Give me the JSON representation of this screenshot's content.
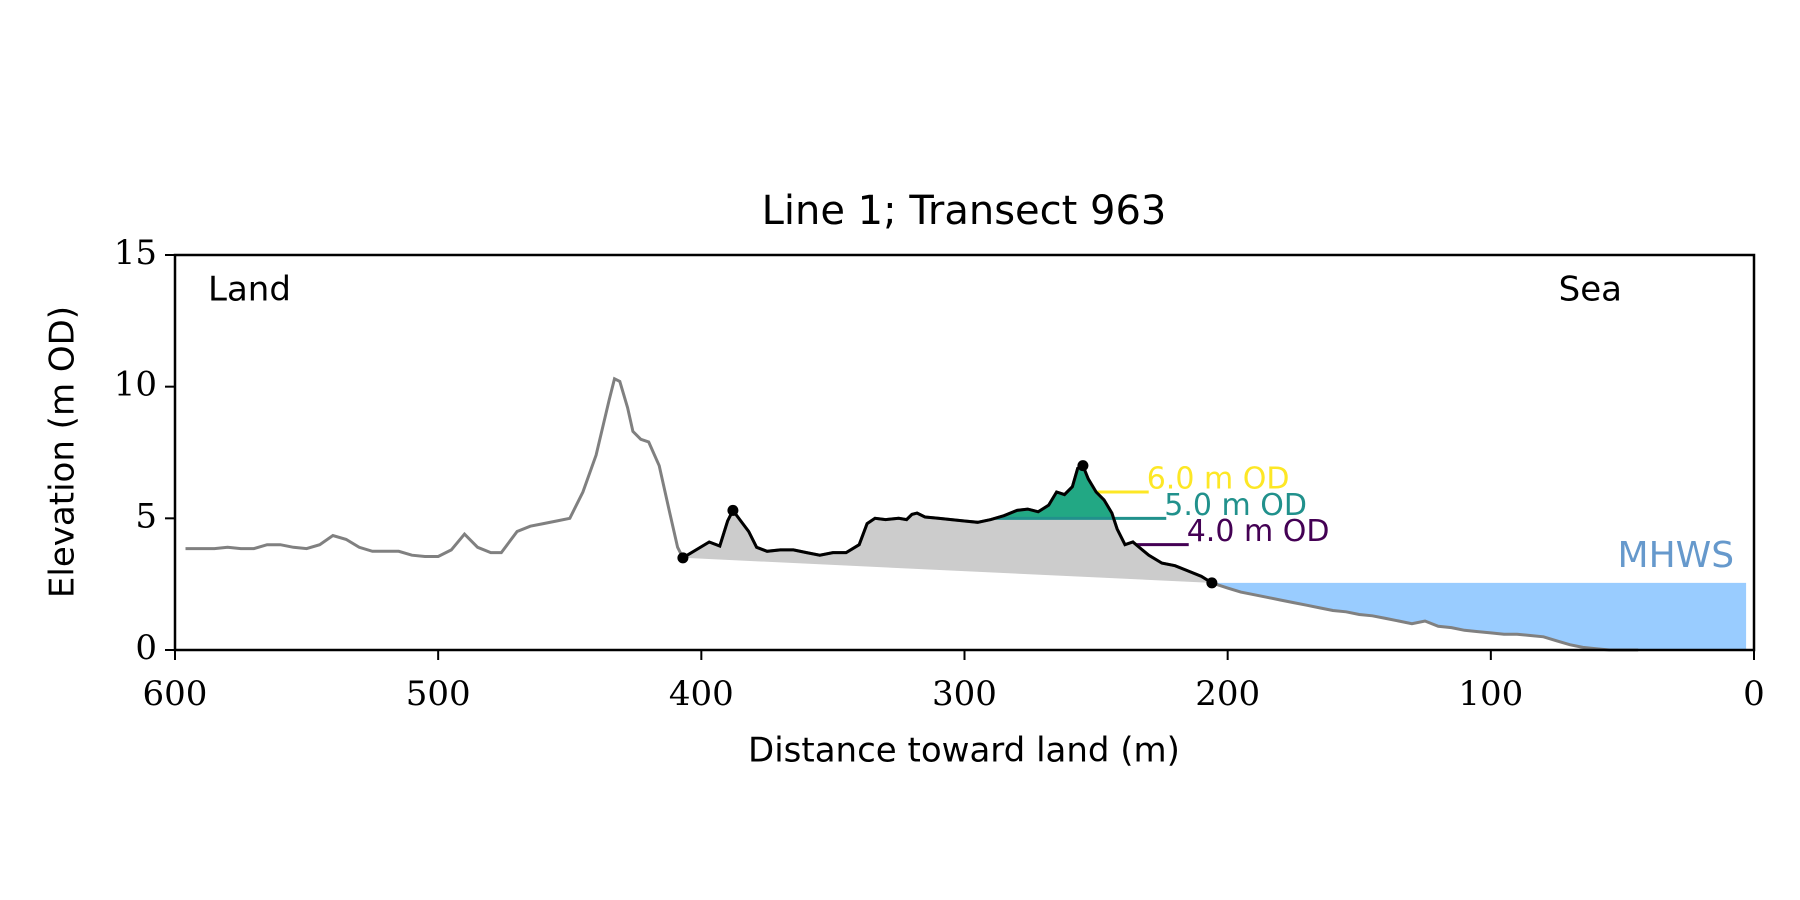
{
  "chart_data": {
    "type": "line",
    "title": "Line 1; Transect 963",
    "xlabel": "Distance toward land (m)",
    "ylabel": "Elevation (m OD)",
    "xlim": [
      600,
      0
    ],
    "ylim": [
      0,
      15
    ],
    "xticks": [
      600,
      500,
      400,
      300,
      200,
      100,
      0
    ],
    "yticks": [
      0,
      5,
      10,
      15
    ],
    "annotations": [
      {
        "text": "Land"
      },
      {
        "text": "Sea"
      }
    ],
    "series": [
      {
        "color": "#808080",
        "x": [
          596,
          590,
          585,
          580,
          575,
          570,
          565,
          560,
          555,
          550,
          545,
          540,
          535,
          530,
          525,
          520,
          515,
          510,
          505,
          500,
          495,
          490,
          485,
          480,
          476,
          470,
          465,
          460,
          455,
          450,
          445,
          440,
          435,
          433,
          431,
          428,
          426,
          423,
          420,
          416,
          412,
          409,
          407,
          402,
          397,
          393,
          390,
          388,
          385,
          382,
          379,
          375,
          370,
          365,
          360,
          355,
          350,
          345,
          340,
          337,
          334,
          330,
          325,
          322,
          320,
          318,
          315,
          310,
          305,
          300,
          295,
          290,
          285,
          280,
          276,
          272,
          268,
          265,
          262,
          259,
          257,
          255,
          253,
          250,
          247,
          244,
          242,
          239,
          236,
          233,
          230,
          225,
          220,
          215,
          210,
          206,
          200,
          195,
          190,
          185,
          180,
          175,
          170,
          165,
          160,
          155,
          150,
          145,
          140,
          135,
          130,
          125,
          120,
          115,
          110,
          105,
          100,
          95,
          90,
          85,
          80,
          75,
          70,
          65,
          60,
          55,
          50,
          44
        ],
        "values": [
          3.85,
          3.85,
          3.85,
          3.9,
          3.85,
          3.85,
          4.0,
          4.0,
          3.9,
          3.85,
          4.0,
          4.35,
          4.2,
          3.9,
          3.75,
          3.75,
          3.75,
          3.6,
          3.55,
          3.55,
          3.8,
          4.4,
          3.9,
          3.7,
          3.7,
          4.5,
          4.7,
          4.8,
          4.9,
          5.0,
          6.0,
          7.4,
          9.5,
          10.3,
          10.2,
          9.2,
          8.3,
          8.0,
          7.9,
          7.0,
          5.2,
          3.9,
          3.5,
          3.8,
          4.1,
          3.95,
          4.9,
          5.3,
          4.9,
          4.5,
          3.9,
          3.75,
          3.8,
          3.8,
          3.7,
          3.6,
          3.7,
          3.7,
          4.0,
          4.8,
          5.0,
          4.95,
          5.0,
          4.95,
          5.15,
          5.2,
          5.05,
          5.0,
          4.95,
          4.9,
          4.85,
          4.95,
          5.1,
          5.3,
          5.35,
          5.25,
          5.5,
          6.0,
          5.9,
          6.2,
          6.9,
          7.0,
          6.5,
          6.0,
          5.7,
          5.2,
          4.6,
          4.0,
          4.1,
          3.85,
          3.6,
          3.3,
          3.2,
          3.0,
          2.8,
          2.55,
          2.35,
          2.2,
          2.1,
          2.0,
          1.9,
          1.8,
          1.7,
          1.6,
          1.5,
          1.45,
          1.35,
          1.3,
          1.2,
          1.1,
          1.0,
          1.1,
          0.9,
          0.85,
          0.75,
          0.7,
          0.65,
          0.6,
          0.6,
          0.55,
          0.5,
          0.35,
          0.2,
          0.1,
          0.05,
          0.0,
          0.0,
          0.0
        ]
      },
      {
        "color": "#000000",
        "fill": "#cccccc",
        "x": [
          407,
          402,
          397,
          393,
          390,
          388,
          385,
          382,
          379,
          375,
          370,
          365,
          360,
          355,
          350,
          345,
          340,
          337,
          334,
          330,
          325,
          322,
          320,
          318,
          315,
          310,
          305,
          300,
          295,
          290,
          285,
          280,
          276,
          272,
          268,
          265,
          262,
          259,
          257,
          255,
          253,
          250,
          247,
          244,
          242,
          239,
          236,
          233,
          230,
          225,
          220,
          215,
          210,
          206
        ],
        "values": [
          3.5,
          3.8,
          4.1,
          3.95,
          4.9,
          5.3,
          4.9,
          4.5,
          3.9,
          3.75,
          3.8,
          3.8,
          3.7,
          3.6,
          3.7,
          3.7,
          4.0,
          4.8,
          5.0,
          4.95,
          5.0,
          4.95,
          5.15,
          5.2,
          5.05,
          5.0,
          4.95,
          4.9,
          4.85,
          4.95,
          5.1,
          5.3,
          5.35,
          5.25,
          5.5,
          6.0,
          5.9,
          6.2,
          6.9,
          7.0,
          6.5,
          6.0,
          5.7,
          5.2,
          4.6,
          4.0,
          4.1,
          3.85,
          3.6,
          3.3,
          3.2,
          3.0,
          2.8,
          2.55
        ]
      }
    ],
    "markers": {
      "color": "#000000",
      "x": [
        407,
        388,
        255,
        206
      ],
      "values": [
        3.5,
        5.3,
        7.0,
        2.55
      ]
    },
    "levels": [
      {
        "label": "6.0 m OD",
        "value": 6,
        "color": "#fde725",
        "fill": true
      },
      {
        "label": "5.0 m OD",
        "value": 5,
        "color": "#21918c",
        "fill_color": "#22a884",
        "fill": true
      },
      {
        "label": "4.0 m OD",
        "value": 4,
        "color": "#440154",
        "fill": false
      }
    ],
    "mhws": {
      "label": "MHWS",
      "value": 2.55,
      "x": [
        206,
        3
      ],
      "color": "#99ccff",
      "text_color": "#6699cc"
    }
  }
}
